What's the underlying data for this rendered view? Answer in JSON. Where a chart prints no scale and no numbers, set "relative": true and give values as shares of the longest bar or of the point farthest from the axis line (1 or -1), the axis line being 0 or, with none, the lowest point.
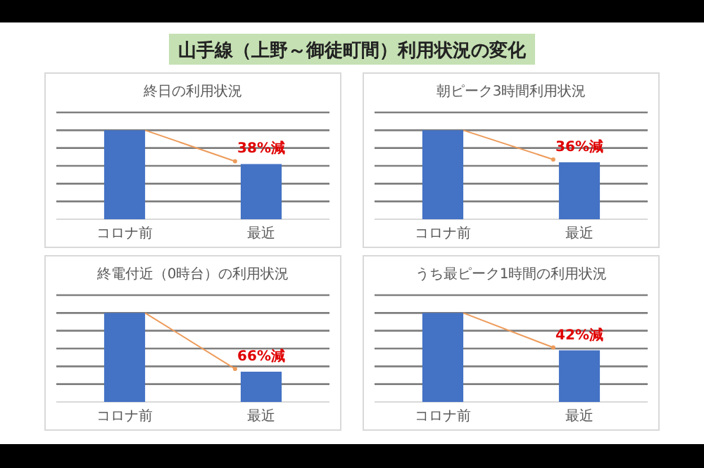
{
  "chart_data": [
    {
      "type": "other",
      "title": "山手線（上野～御徒町間）利用状況の変化"
    },
    {
      "type": "bar",
      "title": "終日の利用状況",
      "categories": [
        "コロナ前",
        "最近"
      ],
      "values": [
        1,
        0.62
      ],
      "color": "#4472c4",
      "relative": true,
      "grid": true,
      "annotations": [
        "38%減"
      ]
    },
    {
      "type": "bar",
      "title": "朝ピーク3時間利用状況",
      "categories": [
        "コロナ前",
        "最近"
      ],
      "values": [
        1,
        0.64
      ],
      "color": "#4472c4",
      "relative": true,
      "grid": true,
      "annotations": [
        "36%減"
      ]
    },
    {
      "type": "bar",
      "title": "終電付近（0時台）の利用状況",
      "categories": [
        "コロナ前",
        "最近"
      ],
      "values": [
        1,
        0.34
      ],
      "color": "#4472c4",
      "relative": true,
      "grid": true,
      "annotations": [
        "66%減"
      ]
    },
    {
      "type": "bar",
      "title": "うち最ピーク1時間の利用状況",
      "categories": [
        "コロナ前",
        "最近"
      ],
      "values": [
        1,
        0.58
      ],
      "color": "#4472c4",
      "relative": true,
      "grid": true,
      "annotations": [
        "42%減"
      ]
    }
  ]
}
